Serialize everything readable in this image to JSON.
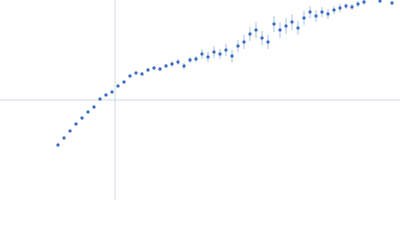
{
  "chart_data": {
    "type": "scatter",
    "x": [
      58,
      64,
      70,
      76,
      82,
      88,
      94,
      100,
      106,
      112,
      118,
      124,
      130,
      136,
      142,
      148,
      154,
      160,
      166,
      172,
      178,
      184,
      190,
      196,
      202,
      208,
      214,
      220,
      226,
      232,
      238,
      244,
      250,
      256,
      262,
      268,
      274,
      280,
      286,
      292,
      298,
      304,
      310,
      316,
      322,
      328,
      334,
      340,
      346,
      352,
      358,
      364,
      380,
      392
    ],
    "values": [
      55,
      62,
      69,
      76,
      82,
      88,
      93,
      101,
      105,
      108,
      114,
      118,
      124,
      127,
      126,
      130,
      132,
      131,
      134,
      136,
      138,
      134,
      140,
      141,
      146,
      143,
      148,
      146,
      150,
      144,
      154,
      158,
      166,
      170,
      162,
      158,
      176,
      170,
      174,
      178,
      172,
      182,
      188,
      184,
      188,
      186,
      190,
      192,
      194,
      193,
      196,
      198,
      199,
      197
    ],
    "errors": [
      1,
      1,
      1,
      1,
      1,
      1,
      1,
      1,
      1,
      1,
      1,
      1,
      1,
      1,
      2,
      2,
      2,
      2,
      2,
      3,
      3,
      3,
      3,
      3,
      5,
      5,
      6,
      5,
      6,
      6,
      6,
      7,
      7,
      8,
      7,
      7,
      8,
      8,
      8,
      8,
      7,
      7,
      6,
      6,
      5,
      5,
      4,
      4,
      3,
      3,
      3,
      3,
      2,
      2
    ],
    "color": "#3a6bc4",
    "error_color": "#a9bfe6",
    "xlim": [
      0,
      400
    ],
    "ylim": [
      0,
      200
    ],
    "xline": 115,
    "yline": 100
  }
}
